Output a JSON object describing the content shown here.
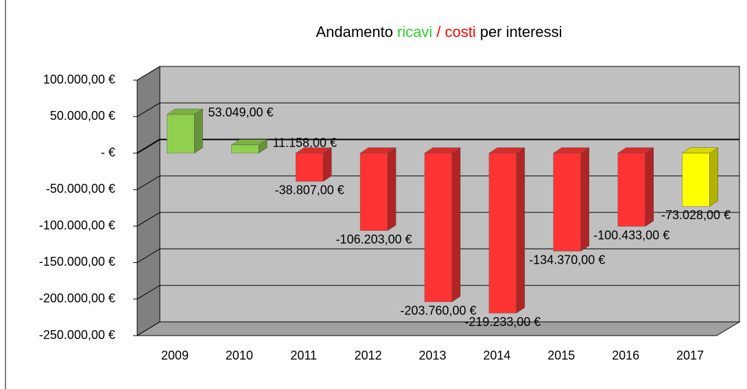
{
  "chart_data": {
    "type": "bar3d",
    "title_parts": [
      "Andamento",
      "ricavi",
      "/",
      "costi",
      "per interessi"
    ],
    "title_colors": [
      "#000000",
      "#33cc33",
      "#ff0000",
      "#ff0000",
      "#000000"
    ],
    "categories": [
      "2009",
      "2010",
      "2011",
      "2012",
      "2013",
      "2014",
      "2015",
      "2016",
      "2017"
    ],
    "values": [
      53049,
      11158,
      -38807,
      -106203,
      -203760,
      -219233,
      -134370,
      -100433,
      -73028
    ],
    "value_labels": [
      "53.049,00 €",
      "11.158,00 €",
      "-38.807,00 €",
      "-106.203,00 €",
      "-203.760,00 €",
      "-219.233,00 €",
      "-134.370,00 €",
      "-100.433,00 €",
      "-73.028,00 €"
    ],
    "colors": [
      "#92d050",
      "#92d050",
      "#ff3333",
      "#ff3333",
      "#ff3333",
      "#ff3333",
      "#ff3333",
      "#ff3333",
      "#ffff00"
    ],
    "ylim": [
      -250000,
      100000
    ],
    "yticks": [
      {
        "value": 100000,
        "label": "100.000,00 €"
      },
      {
        "value": 50000,
        "label": "50.000,00 €"
      },
      {
        "value": 0,
        "label": "-   €"
      },
      {
        "value": -50000,
        "label": "-50.000,00 €"
      },
      {
        "value": -100000,
        "label": "-100.000,00 €"
      },
      {
        "value": -150000,
        "label": "-150.000,00 €"
      },
      {
        "value": -200000,
        "label": "-200.000,00 €"
      },
      {
        "value": -250000,
        "label": "-250.000,00 €"
      }
    ],
    "grid": true
  }
}
